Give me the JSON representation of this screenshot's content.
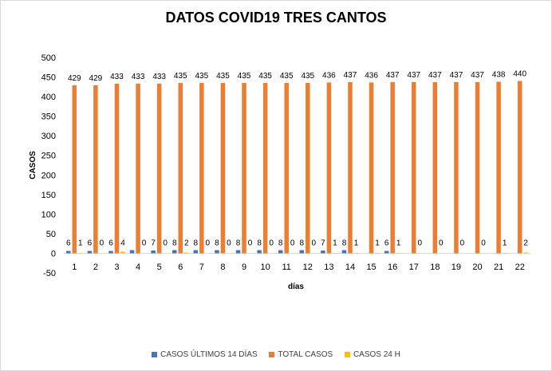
{
  "chart_data": {
    "type": "bar",
    "title": "DATOS COVID19 TRES CANTOS",
    "xlabel": "días",
    "ylabel": "CASOS",
    "ylim": [
      -50,
      500
    ],
    "yticks": [
      -50,
      0,
      50,
      100,
      150,
      200,
      250,
      300,
      350,
      400,
      450,
      500
    ],
    "grid": false,
    "legend_position": "bottom",
    "categories": [
      "1",
      "2",
      "3",
      "4",
      "5",
      "6",
      "7",
      "8",
      "9",
      "10",
      "11",
      "12",
      "13",
      "14",
      "15",
      "16",
      "17",
      "18",
      "19",
      "20",
      "21",
      "22"
    ],
    "series": [
      {
        "name": "CASOS ÚLTIMOS 14 DÍAS",
        "color": "#4472c4",
        "values": [
          6,
          6,
          6,
          8,
          7,
          8,
          8,
          8,
          8,
          8,
          8,
          8,
          7,
          8,
          null,
          6,
          null,
          null,
          null,
          null,
          null,
          null
        ],
        "labels": [
          "6",
          "6",
          "6",
          "",
          "7",
          "8",
          "8",
          "8",
          "8",
          "8",
          "8",
          "8",
          "7",
          "8",
          "",
          "6",
          "",
          "",
          "",
          "",
          "",
          ""
        ]
      },
      {
        "name": "TOTAL CASOS",
        "color": "#ed7d31",
        "values": [
          429,
          429,
          433,
          433,
          433,
          435,
          435,
          435,
          435,
          435,
          435,
          435,
          436,
          437,
          436,
          437,
          437,
          437,
          437,
          437,
          438,
          440
        ],
        "labels": [
          "429",
          "429",
          "433",
          "433",
          "433",
          "435",
          "435",
          "435",
          "435",
          "435",
          "435",
          "435",
          "436",
          "437",
          "436",
          "437",
          "437",
          "437",
          "437",
          "437",
          "438",
          "440"
        ]
      },
      {
        "name": "CASOS 24 H",
        "color": "#ffc000",
        "values": [
          1,
          0,
          4,
          0,
          0,
          2,
          0,
          0,
          0,
          0,
          0,
          0,
          1,
          1,
          1,
          1,
          0,
          0,
          0,
          0,
          1,
          2
        ],
        "labels": [
          "1",
          "0",
          "4",
          "0",
          "0",
          "2",
          "0",
          "0",
          "0",
          "0",
          "0",
          "0",
          "1",
          "1",
          "1",
          "1",
          "0",
          "0",
          "0",
          "0",
          "1",
          "2"
        ]
      }
    ]
  }
}
